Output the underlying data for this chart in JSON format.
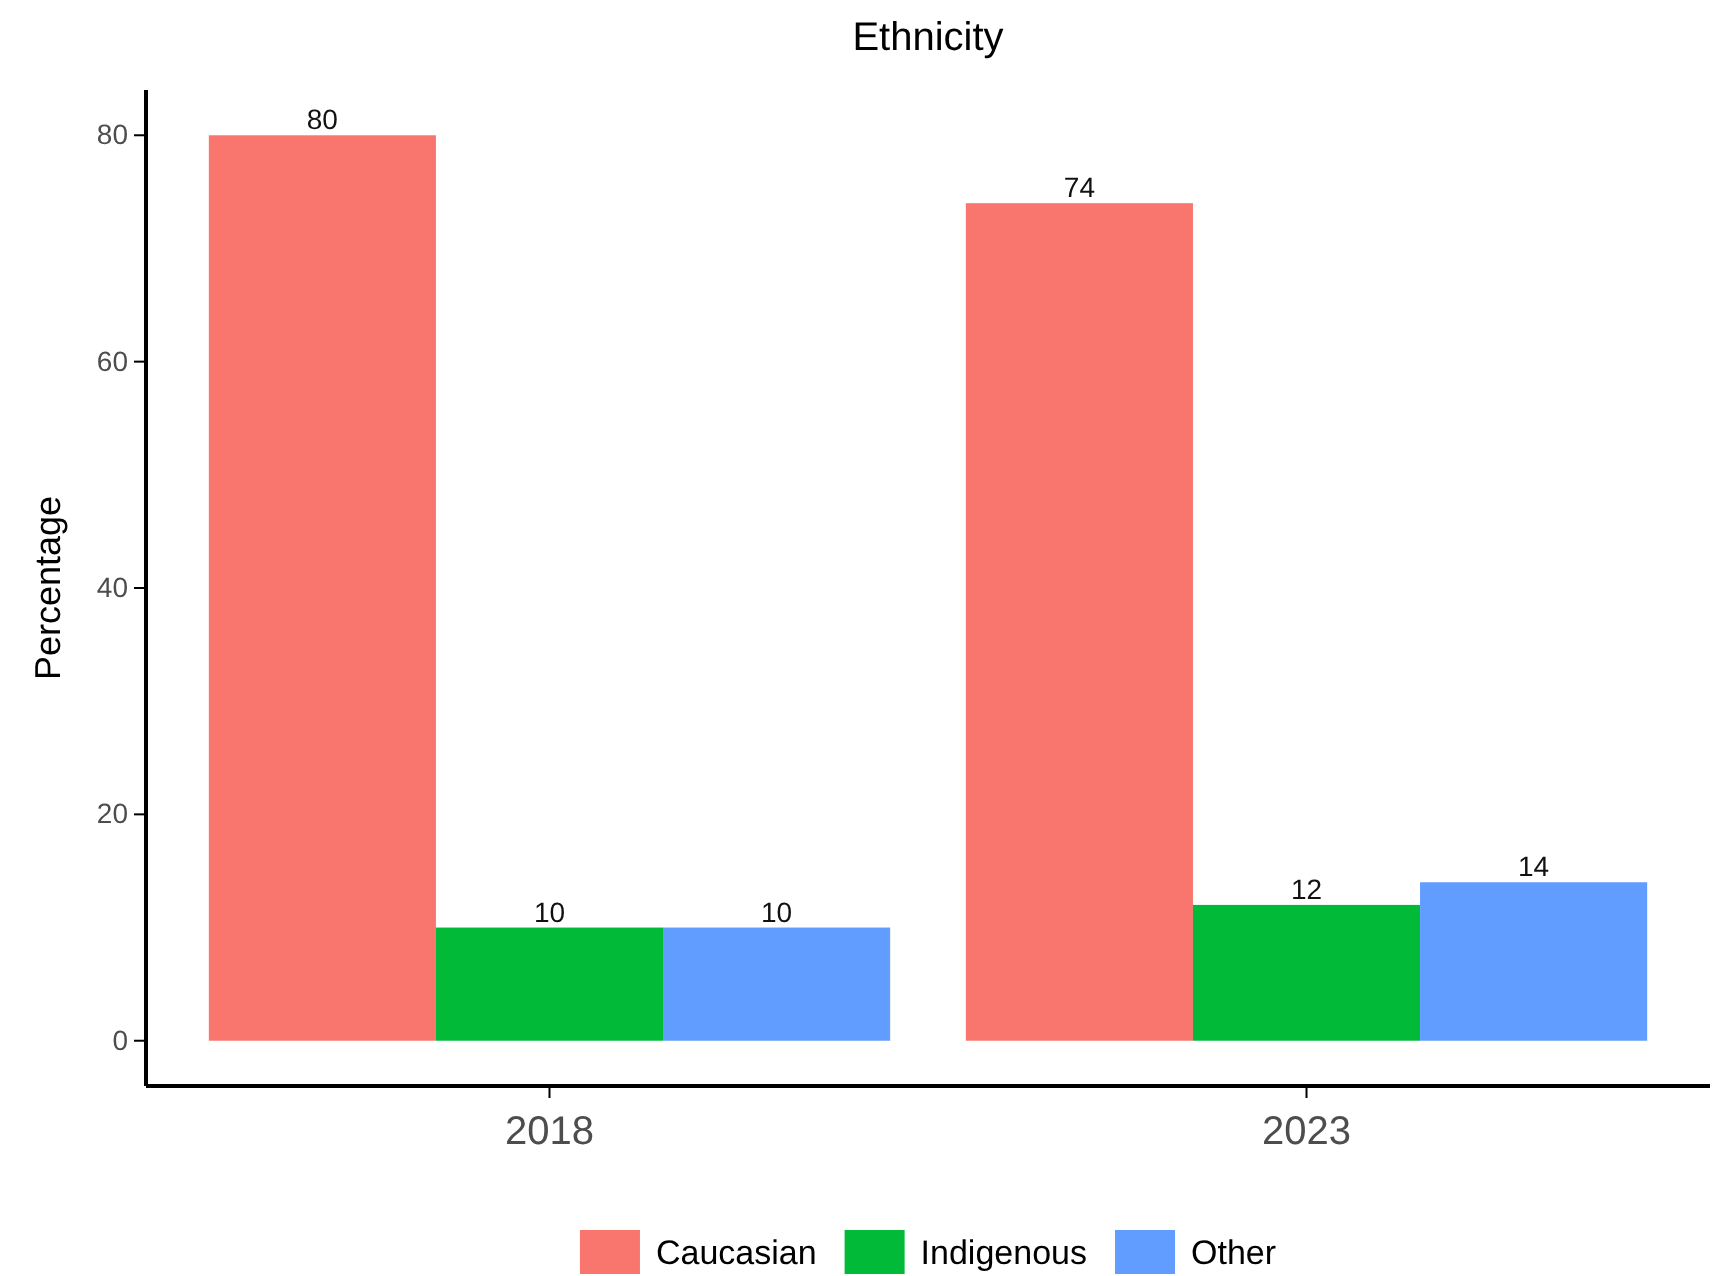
{
  "chart_data": {
    "type": "bar",
    "title": "Ethnicity",
    "ylabel": "Percentage",
    "categories": [
      "2018",
      "2023"
    ],
    "series": [
      {
        "name": "Caucasian",
        "color": "#f8766d",
        "values": [
          80,
          74
        ]
      },
      {
        "name": "Indigenous",
        "color": "#00ba38",
        "values": [
          10,
          12
        ]
      },
      {
        "name": "Other",
        "color": "#619cff",
        "values": [
          10,
          14
        ]
      }
    ],
    "ylim": [
      -4,
      84
    ],
    "yticks": [
      0,
      20,
      40,
      60,
      80
    ],
    "grid": false,
    "legend": "bottom",
    "data_labels": true
  }
}
